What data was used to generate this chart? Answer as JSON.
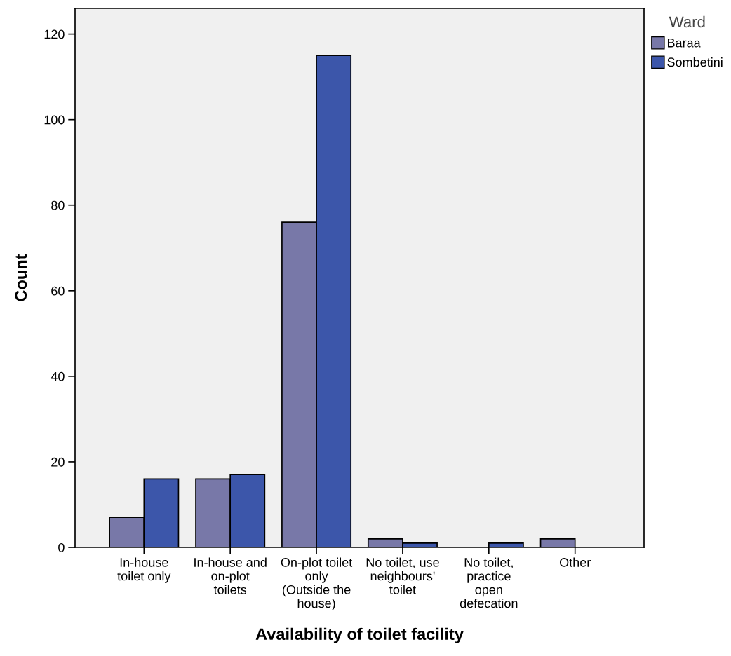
{
  "chart_data": {
    "type": "bar",
    "xlabel": "Availability of toilet facility",
    "ylabel": "Count",
    "legend_title": "Ward",
    "categories": [
      "In-house\ntoilet only",
      "In-house and\non-plot\ntoilets",
      "On-plot toilet\nonly\n(Outside the\nhouse)",
      "No toilet, use\nneighbours'\ntoilet",
      "No toilet,\npractice\nopen\ndefecation",
      "Other"
    ],
    "series": [
      {
        "name": "Baraa",
        "color": "#7878a8",
        "values": [
          7,
          16,
          76,
          2,
          0,
          2
        ]
      },
      {
        "name": "Sombetini",
        "color": "#3c56aa",
        "values": [
          16,
          17,
          115,
          1,
          1,
          0
        ]
      }
    ],
    "ylim": [
      0,
      126
    ],
    "yticks": [
      0,
      20,
      40,
      60,
      80,
      100,
      120
    ],
    "grid": false,
    "legend": "right"
  }
}
